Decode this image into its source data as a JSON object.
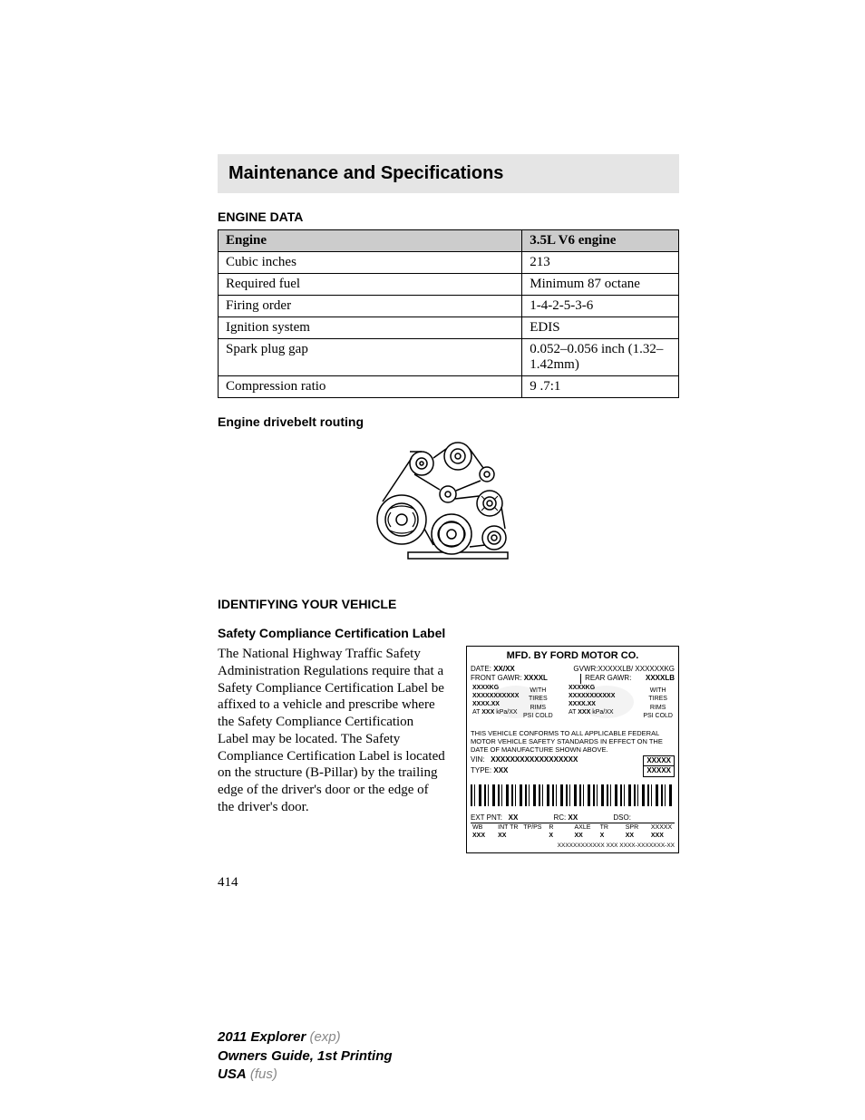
{
  "page": {
    "title": "Maintenance and Specifications",
    "section1_heading": "ENGINE DATA",
    "page_number": "414"
  },
  "engine_table": {
    "header": [
      "Engine",
      "3.5L V6 engine"
    ],
    "rows": [
      [
        "Cubic inches",
        "213"
      ],
      [
        "Required fuel",
        "Minimum 87 octane"
      ],
      [
        "Firing order",
        "1-4-2-5-3-6"
      ],
      [
        "Ignition system",
        "EDIS"
      ],
      [
        "Spark plug gap",
        "0.052–0.056 inch (1.32–1.42mm)"
      ],
      [
        "Compression ratio",
        "9 .7:1"
      ]
    ]
  },
  "drivebelt": {
    "heading": "Engine drivebelt routing"
  },
  "identify": {
    "heading": "IDENTIFYING YOUR VEHICLE",
    "sub_heading": "Safety Compliance Certification Label",
    "body": "The National Highway Traffic Safety Administration Regulations require that a Safety Compliance Certification Label be affixed to a vehicle and prescribe where the Safety Compliance Certification Label may be located. The Safety Compliance Certification Label is located on the structure (B-Pillar) by the trailing edge of the driver's door or the edge of the driver's door."
  },
  "label": {
    "mfd_title": "MFD. BY FORD MOTOR CO.",
    "date_label": "DATE:",
    "date_val": "XX/XX",
    "gvwr": "GVWR:XXXXXLB/ XXXXXXKG",
    "front_gawr": "FRONT GAWR:",
    "front_gawr_val": "XXXXL",
    "rear_gawr": "REAR GAWR:",
    "rear_gawr_val": "XXXXLB",
    "kg1": "XXXXKG",
    "kg2": "XXXXKG",
    "with": "WITH",
    "xxx_line": "XXXXXXXXXXX",
    "tires": "TIRES",
    "rims": "RIMS",
    "xxxx_xx": "XXXX.XX",
    "at_line": "AT",
    "at_xxx": "XXX",
    "kpa": "kPa/XX",
    "psi_cold": "PSI COLD",
    "compliance": "THIS VEHICLE CONFORMS TO ALL APPLICABLE FEDERAL MOTOR VEHICLE SAFETY STANDARDS IN EFFECT ON THE DATE OF MANUFACTURE SHOWN ABOVE.",
    "vin_label": "VIN:",
    "vin_val": "XXXXXXXXXXXXXXXXXX",
    "type_label": "TYPE:",
    "type_val": "XXX",
    "xxxxx1": "XXXXX",
    "xxxxx2": "XXXXX",
    "ext_pnt": "EXT PNT:",
    "ext_pnt_val": "XX",
    "rc": "RC:",
    "rc_val": "XX",
    "dso": "DSO:",
    "wb": "WB",
    "int_tr": "INT TR",
    "tp_ps": "TP/PS",
    "r": "R",
    "axle": "AXLE",
    "tr": "TR",
    "spr": "SPR",
    "xxxxx_col": "XXXXX",
    "xxx_row": "XXX",
    "xx_row": "XX",
    "x_row": "X",
    "xxx_row2": "XXX",
    "bottom_code": "XXXXXXXXXXXX XXX    XXXX-XXXXXXX-XX"
  },
  "footer": {
    "line1_bold": "2011 Explorer",
    "line1_light": " (exp)",
    "line2": "Owners Guide, 1st Printing",
    "line3_bold": "USA",
    "line3_light": " (fus)"
  }
}
